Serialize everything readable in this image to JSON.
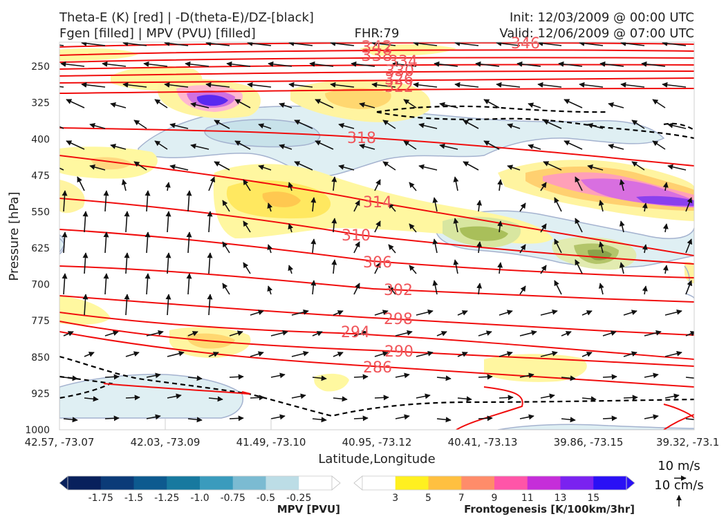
{
  "header": {
    "title_line1": "Theta-E (K) [red] | -D(theta-E)/DZ-[black]",
    "title_line2": "Fgen [filled] | MPV (PVU) [filled]",
    "fhr": "FHR:79",
    "init": "Init: 12/03/2009 @ 00:00 UTC",
    "valid": "Valid: 12/06/2009 @ 07:00 UTC"
  },
  "chart_data": {
    "type": "contour",
    "xlabel": "Latitude,Longitude",
    "ylabel": "Pressure [hPa]",
    "x_ticks": [
      "42.57, -73.07",
      "42.03, -73.09",
      "41.49, -73.10",
      "40.95, -73.12",
      "40.41, -73.13",
      "39.86, -73.15",
      "39.32, -73.1"
    ],
    "y_ticks": [
      250,
      325,
      400,
      475,
      550,
      625,
      700,
      775,
      850,
      925,
      1000
    ],
    "ylim": [
      1000,
      200
    ],
    "theta_e_labels": [
      "342",
      "338",
      "334",
      "330",
      "326",
      "322",
      "346",
      "318",
      "314",
      "310",
      "306",
      "302",
      "298",
      "294",
      "290",
      "286"
    ],
    "colorbars": [
      {
        "label": "MPV [PVU]",
        "ticks": [
          "-1.75",
          "-1.5",
          "-1.25",
          "-1.0",
          "-0.75",
          "-0.5",
          "-0.25"
        ],
        "colors": [
          "#08205c",
          "#0b3b78",
          "#0d5a8f",
          "#17799f",
          "#3a9bbd",
          "#7bbbd2",
          "#bcdde6",
          "#ffffff"
        ]
      },
      {
        "label": "Frontogenesis [K/100km/3hr]",
        "ticks": [
          "3",
          "5",
          "7",
          "9",
          "11",
          "13",
          "15"
        ],
        "colors": [
          "#ffffff",
          "#fff020",
          "#ffc040",
          "#ff8c6a",
          "#ff55a8",
          "#c52ed9",
          "#7a22f0",
          "#2a10f5"
        ]
      }
    ],
    "wind_key": {
      "horizontal": "10 m/s",
      "vertical": "10 cm/s"
    },
    "grid": false
  }
}
